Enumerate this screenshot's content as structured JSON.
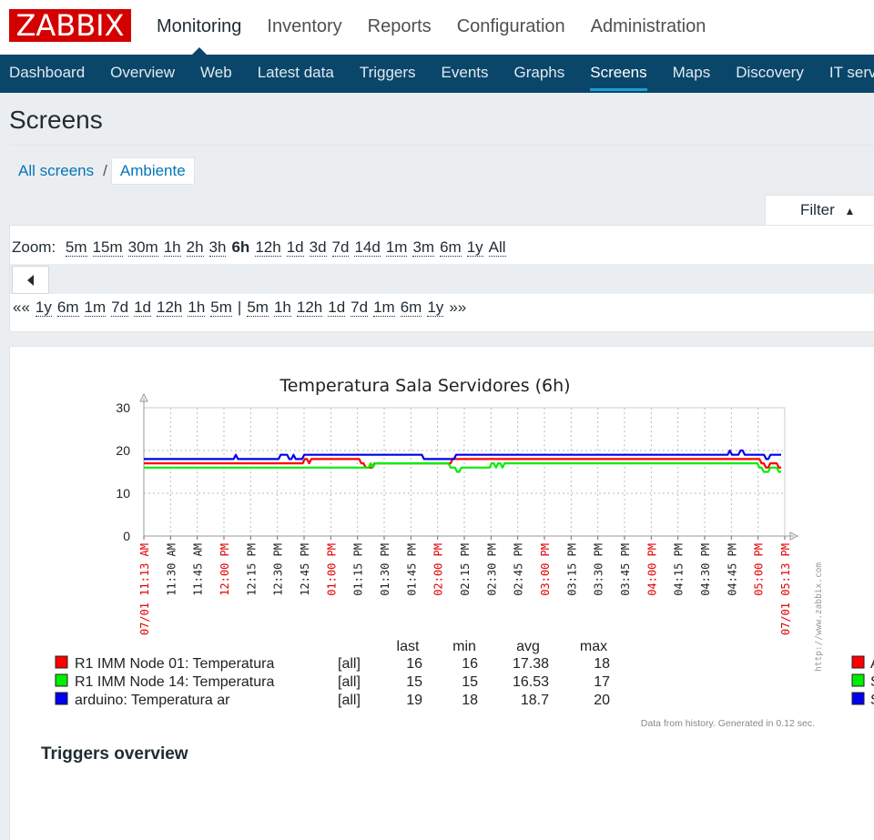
{
  "app": {
    "logo": "ZABBIX"
  },
  "topnav": [
    "Monitoring",
    "Inventory",
    "Reports",
    "Configuration",
    "Administration"
  ],
  "subnav": [
    "Dashboard",
    "Overview",
    "Web",
    "Latest data",
    "Triggers",
    "Events",
    "Graphs",
    "Screens",
    "Maps",
    "Discovery",
    "IT services"
  ],
  "active_topnav": "Monitoring",
  "active_subnav": "Screens",
  "page": {
    "title": "Screens"
  },
  "breadcrumbs": {
    "all": "All screens",
    "sep": "/",
    "current": "Ambiente"
  },
  "filter": {
    "label": "Filter",
    "icon": "triangle-up-icon"
  },
  "zoom": {
    "label": "Zoom:",
    "options": [
      "5m",
      "15m",
      "30m",
      "1h",
      "2h",
      "3h",
      "6h",
      "12h",
      "1d",
      "3d",
      "7d",
      "14d",
      "1m",
      "3m",
      "6m",
      "1y",
      "All"
    ],
    "selected": "6h"
  },
  "periods": {
    "back_glyph": "««",
    "back": [
      "1y",
      "6m",
      "1m",
      "7d",
      "1d",
      "12h",
      "1h",
      "5m"
    ],
    "sep": "|",
    "forward": [
      "5m",
      "1h",
      "12h",
      "1d",
      "7d",
      "1m",
      "6m",
      "1y"
    ],
    "forward_glyph": "»»"
  },
  "chart_data": {
    "type": "line",
    "title": "Temperatura Sala Servidores (6h)",
    "ylim": [
      0,
      30
    ],
    "y_ticks": [
      "0",
      "10",
      "20",
      "30"
    ],
    "x_ticks": [
      {
        "label": "07/01 11:13 AM",
        "color": "red"
      },
      {
        "label": "11:30 AM",
        "color": "black"
      },
      {
        "label": "11:45 AM",
        "color": "black"
      },
      {
        "label": "12:00 PM",
        "color": "red"
      },
      {
        "label": "12:15 PM",
        "color": "black"
      },
      {
        "label": "12:30 PM",
        "color": "black"
      },
      {
        "label": "12:45 PM",
        "color": "black"
      },
      {
        "label": "01:00 PM",
        "color": "red"
      },
      {
        "label": "01:15 PM",
        "color": "black"
      },
      {
        "label": "01:30 PM",
        "color": "black"
      },
      {
        "label": "01:45 PM",
        "color": "black"
      },
      {
        "label": "02:00 PM",
        "color": "red"
      },
      {
        "label": "02:15 PM",
        "color": "black"
      },
      {
        "label": "02:30 PM",
        "color": "black"
      },
      {
        "label": "02:45 PM",
        "color": "black"
      },
      {
        "label": "03:00 PM",
        "color": "red"
      },
      {
        "label": "03:15 PM",
        "color": "black"
      },
      {
        "label": "03:30 PM",
        "color": "black"
      },
      {
        "label": "03:45 PM",
        "color": "black"
      },
      {
        "label": "04:00 PM",
        "color": "red"
      },
      {
        "label": "04:15 PM",
        "color": "black"
      },
      {
        "label": "04:30 PM",
        "color": "black"
      },
      {
        "label": "04:45 PM",
        "color": "black"
      },
      {
        "label": "05:00 PM",
        "color": "red"
      },
      {
        "label": "07/01 05:13 PM",
        "color": "red"
      }
    ],
    "watermark": "http://www.zabbix.com",
    "series": [
      {
        "name": "R1 IMM Node 01: Temperatura",
        "color": "#ff0000",
        "agg": "[all]",
        "last": "16",
        "min": "16",
        "avg": "17.38",
        "max": "18",
        "values": [
          17,
          17,
          17,
          17,
          17,
          17,
          17,
          17,
          17,
          17,
          17,
          17,
          17,
          17,
          17,
          17,
          17,
          17,
          17,
          17,
          17,
          17,
          17,
          17,
          17,
          17,
          17,
          17,
          17,
          17,
          17,
          17,
          17,
          17,
          17,
          17,
          17,
          17,
          17,
          17,
          17,
          17,
          17,
          17,
          17,
          17,
          17,
          17,
          17,
          17,
          17,
          17,
          17,
          17,
          17,
          17,
          17,
          17,
          17,
          17,
          17,
          17,
          17,
          17,
          17,
          17,
          17,
          17,
          17,
          17,
          17,
          17,
          17,
          17,
          18,
          18,
          17,
          18,
          18,
          18,
          18,
          18,
          18,
          18,
          18,
          18,
          18,
          18,
          18,
          18,
          18,
          18,
          18,
          18,
          18,
          18,
          18,
          18,
          18,
          18,
          17,
          17,
          16,
          16,
          16,
          16,
          17,
          17,
          17,
          17,
          17,
          17,
          17,
          17,
          17,
          17,
          17,
          17,
          17,
          17,
          17,
          17,
          17,
          17,
          17,
          17,
          17,
          17,
          17,
          17,
          17,
          17,
          17,
          17,
          17,
          17,
          17,
          17,
          17,
          17,
          17,
          17,
          18,
          18,
          18,
          18,
          18,
          18,
          18,
          18,
          18,
          18,
          18,
          18,
          18,
          18,
          18,
          18,
          18,
          18,
          18,
          18,
          18,
          18,
          18,
          18,
          18,
          18,
          18,
          18,
          18,
          18,
          18,
          18,
          18,
          18,
          18,
          18,
          18,
          18,
          18,
          18,
          18,
          18,
          18,
          18,
          18,
          18,
          18,
          18,
          18,
          18,
          18,
          18,
          18,
          18,
          18,
          18,
          18,
          18,
          18,
          18,
          18,
          18,
          18,
          18,
          18,
          18,
          18,
          18,
          18,
          18,
          18,
          18,
          18,
          18,
          18,
          18,
          18,
          18,
          18,
          18,
          18,
          18,
          18,
          18,
          18,
          18,
          18,
          18,
          18,
          18,
          18,
          18,
          18,
          18,
          18,
          18,
          18,
          18,
          18,
          18,
          18,
          18,
          18,
          18,
          18,
          18,
          18,
          18,
          18,
          18,
          18,
          18,
          18,
          18,
          18,
          18,
          18,
          18,
          18,
          18,
          18,
          18,
          18,
          18,
          18,
          18,
          18,
          18,
          18,
          18,
          18,
          18,
          18,
          18,
          18,
          18,
          18,
          18,
          18,
          18,
          18,
          18,
          17,
          17,
          16,
          16,
          17,
          17,
          17,
          17,
          16,
          16
        ]
      },
      {
        "name": "R1 IMM Node 14: Temperatura",
        "color": "#00ee00",
        "agg": "[all]",
        "last": "15",
        "min": "15",
        "avg": "16.53",
        "max": "17",
        "values": [
          16,
          16,
          16,
          16,
          16,
          16,
          16,
          16,
          16,
          16,
          16,
          16,
          16,
          16,
          16,
          16,
          16,
          16,
          16,
          16,
          16,
          16,
          16,
          16,
          16,
          16,
          16,
          16,
          16,
          16,
          16,
          16,
          16,
          16,
          16,
          16,
          16,
          16,
          16,
          16,
          16,
          16,
          16,
          16,
          16,
          16,
          16,
          16,
          16,
          16,
          16,
          16,
          16,
          16,
          16,
          16,
          16,
          16,
          16,
          16,
          16,
          16,
          16,
          16,
          16,
          16,
          16,
          16,
          16,
          16,
          16,
          16,
          16,
          16,
          16,
          16,
          16,
          16,
          16,
          16,
          16,
          16,
          16,
          16,
          16,
          16,
          16,
          16,
          16,
          16,
          16,
          16,
          16,
          16,
          16,
          16,
          16,
          16,
          16,
          16,
          16,
          16,
          16,
          16,
          16,
          17,
          16,
          17,
          17,
          17,
          17,
          17,
          17,
          17,
          17,
          17,
          17,
          17,
          17,
          17,
          17,
          17,
          17,
          17,
          17,
          17,
          17,
          17,
          17,
          17,
          17,
          17,
          17,
          17,
          17,
          17,
          17,
          17,
          17,
          17,
          17,
          17,
          16,
          16,
          16,
          15,
          15,
          16,
          16,
          16,
          16,
          16,
          16,
          16,
          16,
          16,
          16,
          16,
          16,
          16,
          16,
          17,
          17,
          16,
          17,
          17,
          16,
          17,
          17,
          17,
          17,
          17,
          17,
          17,
          17,
          17,
          17,
          17,
          17,
          17,
          17,
          17,
          17,
          17,
          17,
          17,
          17,
          17,
          17,
          17,
          17,
          17,
          17,
          17,
          17,
          17,
          17,
          17,
          17,
          17,
          17,
          17,
          17,
          17,
          17,
          17,
          17,
          17,
          17,
          17,
          17,
          17,
          17,
          17,
          17,
          17,
          17,
          17,
          17,
          17,
          17,
          17,
          17,
          17,
          17,
          17,
          17,
          17,
          17,
          17,
          17,
          17,
          17,
          17,
          17,
          17,
          17,
          17,
          17,
          17,
          17,
          17,
          17,
          17,
          17,
          17,
          17,
          17,
          17,
          17,
          17,
          17,
          17,
          17,
          17,
          17,
          17,
          17,
          17,
          17,
          17,
          17,
          17,
          17,
          17,
          17,
          17,
          17,
          17,
          17,
          17,
          17,
          17,
          17,
          17,
          17,
          17,
          17,
          17,
          17,
          17,
          17,
          17,
          17,
          17,
          16,
          16,
          15,
          15,
          15,
          16,
          16,
          16,
          16,
          15,
          15
        ]
      },
      {
        "name": "arduino: Temperatura ar",
        "color": "#0000ee",
        "agg": "[all]",
        "last": "19",
        "min": "18",
        "avg": "18.7",
        "max": "20",
        "values": [
          18,
          18,
          18,
          18,
          18,
          18,
          18,
          18,
          18,
          18,
          18,
          18,
          18,
          18,
          18,
          18,
          18,
          18,
          18,
          18,
          18,
          18,
          18,
          18,
          18,
          18,
          18,
          18,
          18,
          18,
          18,
          18,
          18,
          18,
          18,
          18,
          18,
          18,
          18,
          18,
          18,
          18,
          18,
          19,
          18,
          18,
          18,
          18,
          18,
          18,
          18,
          18,
          18,
          18,
          18,
          18,
          18,
          18,
          18,
          18,
          18,
          18,
          18,
          18,
          19,
          19,
          19,
          19,
          18,
          18,
          19,
          18,
          18,
          18,
          18,
          19,
          19,
          19,
          19,
          19,
          19,
          19,
          19,
          19,
          19,
          19,
          19,
          19,
          19,
          19,
          19,
          19,
          19,
          19,
          19,
          19,
          19,
          19,
          19,
          19,
          19,
          19,
          19,
          19,
          19,
          19,
          19,
          19,
          19,
          19,
          19,
          19,
          19,
          19,
          19,
          19,
          19,
          19,
          19,
          19,
          19,
          19,
          19,
          19,
          19,
          19,
          19,
          19,
          19,
          19,
          19,
          18,
          18,
          18,
          18,
          18,
          18,
          18,
          18,
          18,
          18,
          18,
          18,
          18,
          18,
          18,
          19,
          19,
          19,
          19,
          19,
          19,
          19,
          19,
          19,
          19,
          19,
          19,
          19,
          19,
          19,
          19,
          19,
          19,
          19,
          19,
          19,
          19,
          19,
          19,
          19,
          19,
          19,
          19,
          19,
          19,
          19,
          19,
          19,
          19,
          19,
          19,
          19,
          19,
          19,
          19,
          19,
          19,
          19,
          19,
          19,
          19,
          19,
          19,
          19,
          19,
          19,
          19,
          19,
          19,
          19,
          19,
          19,
          19,
          19,
          19,
          19,
          19,
          19,
          19,
          19,
          19,
          19,
          19,
          19,
          19,
          19,
          19,
          19,
          19,
          19,
          19,
          19,
          19,
          19,
          19,
          19,
          19,
          19,
          19,
          19,
          19,
          19,
          19,
          19,
          19,
          19,
          19,
          19,
          19,
          19,
          19,
          19,
          19,
          19,
          19,
          19,
          19,
          19,
          19,
          19,
          19,
          19,
          19,
          19,
          19,
          19,
          19,
          19,
          19,
          19,
          19,
          19,
          19,
          19,
          19,
          19,
          19,
          19,
          19,
          19,
          19,
          19,
          19,
          20,
          19,
          19,
          19,
          19,
          20,
          20,
          19,
          19,
          19,
          19,
          19,
          19,
          19,
          19,
          19,
          19,
          18,
          18,
          19,
          19,
          19,
          19,
          19,
          19
        ]
      }
    ],
    "legend_headers": [
      "last",
      "min",
      "avg",
      "max"
    ],
    "legend_right_cut": [
      {
        "color": "#ff0000",
        "label": "A"
      },
      {
        "color": "#00ee00",
        "label": "S"
      },
      {
        "color": "#0000ee",
        "label": "S"
      }
    ],
    "footer": "Data from history. Generated in 0.12 sec."
  },
  "triggers": {
    "title": "Triggers overview"
  }
}
